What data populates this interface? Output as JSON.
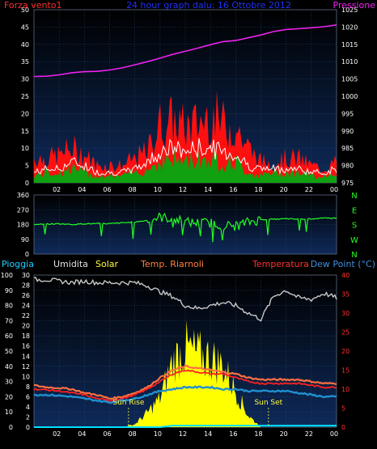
{
  "header": {
    "left_label": "Forza vento1",
    "title": "24 hour graph dalu: 16 Ottobre 2012",
    "right_label": "Pressione"
  },
  "colors": {
    "wind_gust": "#ff1010",
    "wind_avg": "#ffffff",
    "wind_speed": "#10a010",
    "pressure": "#ee22ee",
    "wind_dir": "#22ff22",
    "humidity": "#c8c8c8",
    "solar": "#ffff00",
    "temperature": "#ff2020",
    "app_temp": "#ff7040",
    "dew_point": "#2090d0",
    "rain": "#00e0ff",
    "panel_bg_top": "#0a1f48",
    "panel_bg_bottom": "#000000"
  },
  "x_ticks": [
    "02",
    "04",
    "06",
    "08",
    "10",
    "12",
    "14",
    "16",
    "18",
    "20",
    "22",
    "00"
  ],
  "chart_data": [
    {
      "type": "area",
      "name": "wind-pressure",
      "ylabel_left": "Forza vento1",
      "ylabel_right": "Pressione",
      "left_axis": {
        "ticks": [
          0,
          5,
          10,
          15,
          20,
          25,
          30,
          35,
          40,
          45,
          50
        ],
        "range": [
          0,
          50
        ]
      },
      "right_axis": {
        "ticks": [
          975,
          980,
          985,
          990,
          995,
          1000,
          1005,
          1010,
          1015,
          1020,
          1025
        ],
        "range": [
          975,
          1025
        ]
      },
      "hours": [
        0,
        1,
        2,
        3,
        4,
        5,
        6,
        7,
        8,
        9,
        10,
        11,
        12,
        13,
        14,
        15,
        16,
        17,
        18,
        19,
        20,
        21,
        22,
        23,
        24
      ],
      "series": [
        {
          "name": "gust",
          "values": [
            7,
            7,
            8,
            10,
            8,
            5,
            5,
            5,
            7,
            9,
            17,
            18,
            16,
            17,
            20,
            17,
            16,
            10,
            6,
            6,
            7,
            7,
            5,
            4,
            6
          ]
        },
        {
          "name": "average",
          "values": [
            3,
            4,
            4,
            6,
            5,
            3,
            3,
            3,
            4,
            6,
            9,
            10,
            9,
            10,
            10,
            9,
            8,
            5,
            4,
            4,
            4,
            4,
            3,
            3,
            4
          ]
        },
        {
          "name": "speed",
          "values": [
            2,
            3,
            3,
            4,
            3,
            2,
            2,
            2,
            3,
            4,
            6,
            7,
            6,
            7,
            7,
            6,
            6,
            3,
            2,
            3,
            3,
            3,
            2,
            2,
            3
          ]
        },
        {
          "name": "pressure",
          "values": [
            1005.7,
            1005.8,
            1006.2,
            1006.8,
            1007.1,
            1007.2,
            1007.6,
            1008.2,
            1009.1,
            1010.0,
            1011.0,
            1012.1,
            1013.0,
            1013.9,
            1014.9,
            1015.8,
            1016.1,
            1016.9,
            1017.7,
            1018.7,
            1019.3,
            1019.5,
            1019.8,
            1020.1,
            1020.6
          ]
        }
      ]
    },
    {
      "type": "line",
      "name": "wind-direction",
      "left_axis": {
        "ticks": [
          0,
          90,
          180,
          270,
          360
        ],
        "range": [
          0,
          360
        ]
      },
      "direction_labels": [
        "N",
        "W",
        "S",
        "E",
        "N"
      ],
      "hours": [
        0,
        1,
        2,
        3,
        4,
        5,
        6,
        7,
        8,
        9,
        10,
        11,
        12,
        13,
        14,
        15,
        16,
        17,
        18,
        19,
        20,
        21,
        22,
        23,
        24
      ],
      "series": [
        {
          "name": "direction",
          "values": [
            180,
            182,
            185,
            180,
            185,
            185,
            185,
            190,
            195,
            205,
            225,
            215,
            195,
            190,
            190,
            175,
            170,
            195,
            210,
            212,
            215,
            212,
            215,
            218,
            220
          ]
        }
      ]
    },
    {
      "type": "line",
      "name": "temperature-humidity",
      "legend": [
        "Pioggia",
        "Umidita",
        "Solar",
        "Temp. Riarnoli",
        "Temperatura",
        "Dew Point (°C)"
      ],
      "left_axis": {
        "ticks": [
          0,
          10,
          20,
          30,
          40,
          50,
          60,
          70,
          80,
          90,
          100
        ],
        "range": [
          0,
          100
        ]
      },
      "mid_axis": {
        "ticks": [
          0,
          2,
          4,
          6,
          8,
          10,
          12,
          14,
          16,
          18,
          20,
          22,
          24,
          26,
          28,
          30
        ],
        "range": [
          0,
          30
        ]
      },
      "right_axis": {
        "ticks": [
          0,
          5,
          10,
          15,
          20,
          25,
          30,
          35,
          40
        ],
        "range": [
          0,
          40
        ]
      },
      "annotations": [
        "Sun Rise",
        "Sun Set"
      ],
      "sun_rise_hour": 7.5,
      "sun_set_hour": 18.6,
      "hours": [
        0,
        1,
        2,
        3,
        4,
        5,
        6,
        7,
        8,
        9,
        10,
        11,
        12,
        13,
        14,
        15,
        16,
        17,
        18,
        19,
        20,
        21,
        22,
        23,
        24
      ],
      "series": [
        {
          "name": "humidity",
          "values": [
            97,
            97,
            96,
            95,
            96,
            95,
            95,
            95,
            95,
            93,
            89,
            86,
            80,
            78,
            80,
            82,
            80,
            75,
            71,
            86,
            90,
            85,
            84,
            88,
            85
          ]
        },
        {
          "name": "solar",
          "values": [
            0,
            0,
            0,
            0,
            0,
            0,
            0,
            0,
            2,
            10,
            20,
            45,
            55,
            50,
            48,
            42,
            25,
            8,
            0,
            0,
            0,
            0,
            0,
            0,
            0
          ]
        },
        {
          "name": "app_temp",
          "values": [
            11,
            10.5,
            10.3,
            10,
            9,
            8.5,
            7.5,
            8,
            9,
            10.5,
            13,
            15,
            16,
            15.5,
            15,
            14.5,
            14,
            13,
            12.5,
            12.5,
            12.5,
            12.5,
            12,
            11.5,
            11.5
          ]
        },
        {
          "name": "temperature",
          "values": [
            10,
            9.8,
            9.5,
            9,
            8.5,
            7.5,
            7,
            7.5,
            8.5,
            10,
            12,
            14,
            15,
            14.5,
            14,
            14,
            13,
            12,
            11.5,
            11.5,
            11.5,
            11.5,
            11,
            10.5,
            10.5
          ]
        },
        {
          "name": "dew_point",
          "values": [
            8.5,
            8.5,
            8.3,
            8,
            7.5,
            7,
            6.5,
            7,
            7.5,
            8.5,
            9.5,
            10,
            10.5,
            10.5,
            10.5,
            10,
            10,
            9.5,
            9.5,
            9.5,
            9.5,
            9,
            8.5,
            8,
            8
          ]
        },
        {
          "name": "rain",
          "values": [
            0,
            0,
            0,
            0,
            0,
            0,
            0,
            0,
            0,
            0,
            0,
            0.4,
            0.4,
            0.4,
            0.4,
            0.4,
            0.4,
            0.4,
            0.4,
            0.4,
            0.4,
            0.4,
            0.4,
            0.4,
            0.4
          ]
        }
      ]
    }
  ]
}
